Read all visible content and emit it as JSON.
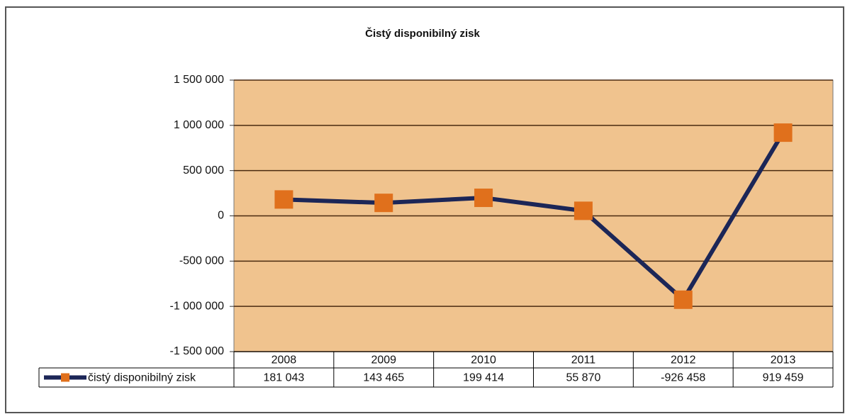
{
  "chart_data": {
    "type": "line",
    "title": "Čistý disponibilný  zisk",
    "categories": [
      "2008",
      "2009",
      "2010",
      "2011",
      "2012",
      "2013"
    ],
    "series": [
      {
        "name": "čistý disponibilný zisk",
        "color": "#1c2657",
        "marker_color": "#e0701c",
        "values": [
          181043,
          143465,
          199414,
          55870,
          -926458,
          919459
        ],
        "value_labels": [
          "181 043",
          "143 465",
          "199 414",
          "55 870",
          "-926 458",
          "919 459"
        ]
      }
    ],
    "ylim": [
      -1500000,
      1500000
    ],
    "yticks": [
      {
        "value": 1500000,
        "label": "1 500 000"
      },
      {
        "value": 1000000,
        "label": "1 000 000"
      },
      {
        "value": 500000,
        "label": "500 000"
      },
      0,
      {
        "value": -500000,
        "label": "-500 000"
      },
      {
        "value": -1000000,
        "label": "-1 000 000"
      },
      {
        "value": -1500000,
        "label": "-1 500 000"
      }
    ],
    "grid": true,
    "plot_background": "#f0c38e"
  }
}
